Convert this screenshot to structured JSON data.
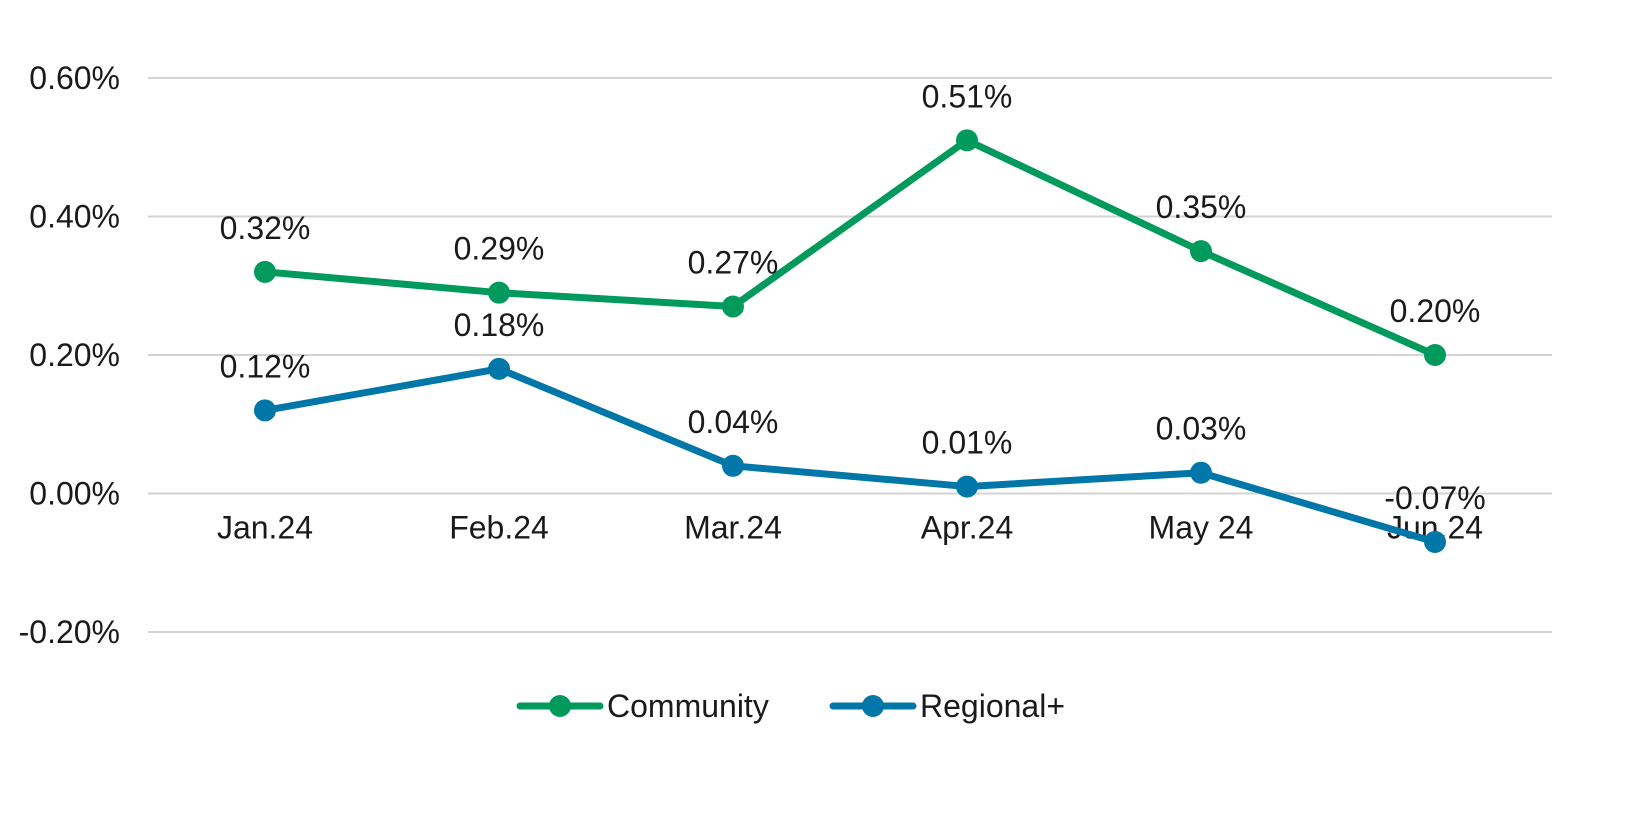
{
  "chart_data": {
    "type": "line",
    "title": "",
    "xlabel": "",
    "ylabel": "",
    "categories": [
      "Jan.24",
      "Feb.24",
      "Mar.24",
      "Apr.24",
      "May 24",
      "Jun.24"
    ],
    "ylim": [
      -0.2,
      0.6
    ],
    "yticks": [
      -0.2,
      0.0,
      0.2,
      0.4,
      0.6
    ],
    "ytick_labels": [
      "-0.20%",
      "0.00%",
      "0.20%",
      "0.40%",
      "0.60%"
    ],
    "grid": true,
    "legend_position": "bottom",
    "series": [
      {
        "name": "Community",
        "color": "#009A5C",
        "values": [
          0.32,
          0.29,
          0.27,
          0.51,
          0.35,
          0.2
        ],
        "labels": [
          "0.32%",
          "0.29%",
          "0.27%",
          "0.51%",
          "0.35%",
          "0.20%"
        ]
      },
      {
        "name": "Regional+",
        "color": "#0077A8",
        "values": [
          0.12,
          0.18,
          0.04,
          0.01,
          0.03,
          -0.07
        ],
        "labels": [
          "0.12%",
          "0.18%",
          "0.04%",
          "0.01%",
          "0.03%",
          "-0.07%"
        ]
      }
    ]
  }
}
